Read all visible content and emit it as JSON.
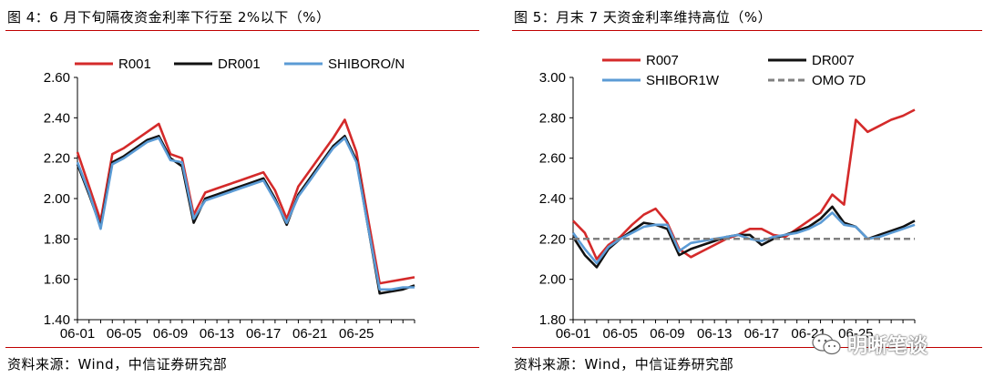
{
  "left": {
    "title": "图 4：6 月下旬隔夜资金利率下行至 2%以下（%）",
    "source": "资料来源：Wind，中信证券研究部"
  },
  "right": {
    "title": "图 5：月末 7 天资金利率维持高位（%）",
    "source": "资料来源：Wind，中信证券研究部"
  },
  "watermark": {
    "text": "明晰笔谈",
    "icon": "wechat-icon"
  },
  "chart_data": [
    {
      "type": "line",
      "ylim": [
        1.4,
        2.6
      ],
      "yticks": [
        "1.40",
        "1.60",
        "1.80",
        "2.00",
        "2.20",
        "2.40",
        "2.60"
      ],
      "xlabels": [
        "06-01",
        "06-05",
        "06-09",
        "06-13",
        "06-17",
        "06-21",
        "06-25"
      ],
      "x": [
        "06-01",
        "06-02",
        "06-03",
        "06-04",
        "06-05",
        "06-06",
        "06-07",
        "06-08",
        "06-09",
        "06-10",
        "06-11",
        "06-12",
        "06-13",
        "06-14",
        "06-15",
        "06-16",
        "06-17",
        "06-18",
        "06-19",
        "06-20",
        "06-21",
        "06-22",
        "06-23",
        "06-24",
        "06-25",
        "06-26",
        "06-27",
        "06-28",
        "06-29",
        "06-30"
      ],
      "series": [
        {
          "name": "R001",
          "color": "#d42a2a",
          "values": [
            2.23,
            2.06,
            1.89,
            2.22,
            2.25,
            2.29,
            2.33,
            2.37,
            2.22,
            2.2,
            1.92,
            2.03,
            2.05,
            2.07,
            2.09,
            2.11,
            2.13,
            2.04,
            1.9,
            2.06,
            2.14,
            2.22,
            2.3,
            2.39,
            2.23,
            1.9,
            1.58,
            1.59,
            1.6,
            1.61
          ]
        },
        {
          "name": "DR001",
          "color": "#111111",
          "values": [
            2.17,
            2.02,
            1.86,
            2.18,
            2.21,
            2.25,
            2.29,
            2.31,
            2.2,
            2.16,
            1.88,
            2.0,
            2.02,
            2.04,
            2.06,
            2.08,
            2.1,
            2.0,
            1.87,
            2.02,
            2.1,
            2.18,
            2.26,
            2.31,
            2.19,
            1.86,
            1.53,
            1.54,
            1.55,
            1.57
          ]
        },
        {
          "name": "SHIBORO/N",
          "color": "#5b9bd5",
          "values": [
            2.18,
            2.03,
            1.85,
            2.17,
            2.2,
            2.24,
            2.28,
            2.3,
            2.19,
            2.18,
            1.9,
            1.99,
            2.01,
            2.03,
            2.05,
            2.07,
            2.09,
            1.99,
            1.88,
            2.01,
            2.09,
            2.17,
            2.25,
            2.3,
            2.18,
            1.86,
            1.55,
            1.55,
            1.56,
            1.56
          ]
        }
      ],
      "legend": "top"
    },
    {
      "type": "line",
      "ylim": [
        1.8,
        3.0
      ],
      "yticks": [
        "1.80",
        "2.00",
        "2.20",
        "2.40",
        "2.60",
        "2.80",
        "3.00"
      ],
      "xlabels": [
        "06-01",
        "06-05",
        "06-09",
        "06-13",
        "06-17",
        "06-21",
        "06-25"
      ],
      "x": [
        "06-01",
        "06-02",
        "06-03",
        "06-04",
        "06-05",
        "06-06",
        "06-07",
        "06-08",
        "06-09",
        "06-10",
        "06-11",
        "06-12",
        "06-13",
        "06-14",
        "06-15",
        "06-16",
        "06-17",
        "06-18",
        "06-19",
        "06-20",
        "06-21",
        "06-22",
        "06-23",
        "06-24",
        "06-25",
        "06-26",
        "06-27",
        "06-28",
        "06-29",
        "06-30"
      ],
      "series": [
        {
          "name": "R007",
          "color": "#d42a2a",
          "dashed": false,
          "values": [
            2.29,
            2.23,
            2.1,
            2.17,
            2.21,
            2.27,
            2.32,
            2.35,
            2.28,
            2.15,
            2.11,
            2.14,
            2.17,
            2.2,
            2.22,
            2.25,
            2.25,
            2.22,
            2.21,
            2.25,
            2.29,
            2.33,
            2.42,
            2.37,
            2.79,
            2.73,
            2.76,
            2.79,
            2.81,
            2.84
          ]
        },
        {
          "name": "DR007",
          "color": "#111111",
          "dashed": false,
          "values": [
            2.21,
            2.12,
            2.06,
            2.15,
            2.2,
            2.24,
            2.28,
            2.27,
            2.25,
            2.12,
            2.15,
            2.17,
            2.19,
            2.21,
            2.22,
            2.22,
            2.17,
            2.2,
            2.22,
            2.24,
            2.26,
            2.3,
            2.36,
            2.28,
            2.26,
            2.2,
            2.22,
            2.24,
            2.26,
            2.29
          ]
        },
        {
          "name": "SHIBOR1W",
          "color": "#5b9bd5",
          "dashed": false,
          "values": [
            2.23,
            2.15,
            2.08,
            2.16,
            2.2,
            2.23,
            2.26,
            2.27,
            2.27,
            2.14,
            2.18,
            2.19,
            2.2,
            2.21,
            2.22,
            2.2,
            2.19,
            2.21,
            2.22,
            2.23,
            2.25,
            2.28,
            2.33,
            2.27,
            2.26,
            2.2,
            2.21,
            2.23,
            2.25,
            2.27
          ]
        },
        {
          "name": "OMO 7D",
          "color": "#808080",
          "dashed": true,
          "values": [
            2.2,
            2.2,
            2.2,
            2.2,
            2.2,
            2.2,
            2.2,
            2.2,
            2.2,
            2.2,
            2.2,
            2.2,
            2.2,
            2.2,
            2.2,
            2.2,
            2.2,
            2.2,
            2.2,
            2.2,
            2.2,
            2.2,
            2.2,
            2.2,
            2.2,
            2.2,
            2.2,
            2.2,
            2.2,
            2.2
          ]
        }
      ],
      "legend": "top"
    }
  ]
}
